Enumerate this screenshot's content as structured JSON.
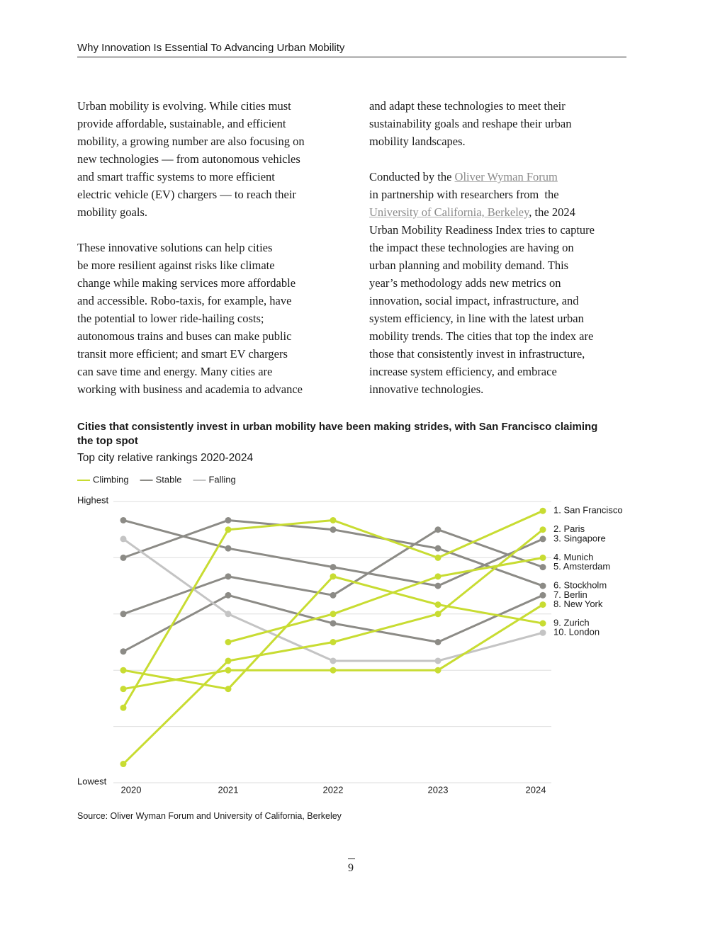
{
  "header": {
    "title": "Why Innovation Is Essential To Advancing Urban Mobility"
  },
  "columns": [
    {
      "paragraphs": [
        {
          "lines": [
            "Urban mobility is evolving. While cities must",
            "provide affordable, sustainable, and efficient",
            "mobility, a growing number are also focusing on",
            "new technologies — from autonomous vehicles",
            "and smart traffic systems to more efficient",
            "electric vehicle (EV) chargers — to reach their",
            "mobility goals."
          ]
        },
        {
          "lines": [
            "These innovative solutions can help cities",
            "be more resilient against risks like climate",
            "change while making services more affordable",
            "and accessible. Robo-taxis, for example, have",
            "the potential to lower ride-hailing costs;",
            "autonomous trains and buses can make public",
            "transit more efficient; and smart EV chargers",
            "can save time and energy. Many cities are",
            "working with business and academia to advance"
          ]
        }
      ]
    },
    {
      "paragraphs": [
        {
          "lines": [
            "and adapt these technologies to meet their",
            "sustainability goals and reshape their urban",
            "mobility landscapes."
          ]
        },
        {
          "lines": [
            [
              "Conducted by the ",
              {
                "text": "Oliver Wyman Forum",
                "link": true
              }
            ],
            "in partnership with researchers from  the",
            [
              {
                "text": "University of California, Berkeley",
                "link": true
              },
              ", the 2024"
            ],
            "Urban Mobility Readiness Index tries to capture",
            "the impact these technologies are having on",
            "urban planning and mobility demand. This",
            "year’s methodology adds new metrics on",
            "innovation, social impact, infrastructure, and",
            "system efficiency, in line with the latest urban",
            "mobility trends. The cities that top the index are",
            "those that consistently invest in infrastructure,",
            "increase system efficiency, and embrace",
            "innovative technologies."
          ]
        }
      ]
    }
  ],
  "chart_data": {
    "type": "line",
    "title": "Cities that consistently invest in urban mobility have been making strides, with San Francisco claiming the top spot",
    "subtitle": "Top city relative rankings 2020-2024",
    "legend": [
      {
        "name": "Climbing",
        "color": "#c8dc32"
      },
      {
        "name": "Stable",
        "color": "#8c8b86"
      },
      {
        "name": "Falling",
        "color": "#c4c4c4"
      }
    ],
    "y_top_label": "Highest",
    "y_bottom_label": "Lowest",
    "categories": [
      "2020",
      "2021",
      "2022",
      "2023",
      "2024"
    ],
    "ylim": [
      30,
      0
    ],
    "grid_lines": [
      0,
      6,
      12,
      18,
      24,
      30
    ],
    "series": [
      {
        "name": "1. San Francisco",
        "group": "Climbing",
        "color": "#c8dc32",
        "values": [
          22,
          3,
          2,
          6,
          1
        ]
      },
      {
        "name": "2. Paris",
        "group": "Climbing",
        "color": "#c8dc32",
        "values": [
          28,
          17,
          15,
          12,
          3
        ]
      },
      {
        "name": "3. Singapore",
        "group": "Stable",
        "color": "#8c8b86",
        "values": [
          2,
          5,
          7,
          9,
          4
        ]
      },
      {
        "name": "4. Munich",
        "group": "Climbing",
        "color": "#c8dc32",
        "values": [
          null,
          15,
          12,
          8,
          6
        ]
      },
      {
        "name": "5. Amsterdam",
        "group": "Stable",
        "color": "#8c8b86",
        "values": [
          12,
          8,
          10,
          3,
          7
        ]
      },
      {
        "name": "6. Stockholm",
        "group": "Stable",
        "color": "#8c8b86",
        "values": [
          6,
          2,
          3,
          5,
          9
        ]
      },
      {
        "name": "7. Berlin",
        "group": "Stable",
        "color": "#8c8b86",
        "values": [
          16,
          10,
          13,
          15,
          10
        ]
      },
      {
        "name": "8. New York",
        "group": "Climbing",
        "color": "#c8dc32",
        "values": [
          20,
          18,
          18,
          18,
          11
        ]
      },
      {
        "name": "9. Zurich",
        "group": "Climbing",
        "color": "#c8dc32",
        "values": [
          18,
          20,
          8,
          11,
          13
        ]
      },
      {
        "name": "10. London",
        "group": "Falling",
        "color": "#c4c4c4",
        "values": [
          4,
          12,
          17,
          17,
          14
        ]
      }
    ],
    "source": "Source: Oliver Wyman Forum and University of California, Berkeley"
  },
  "footer": {
    "page_number": "9"
  }
}
